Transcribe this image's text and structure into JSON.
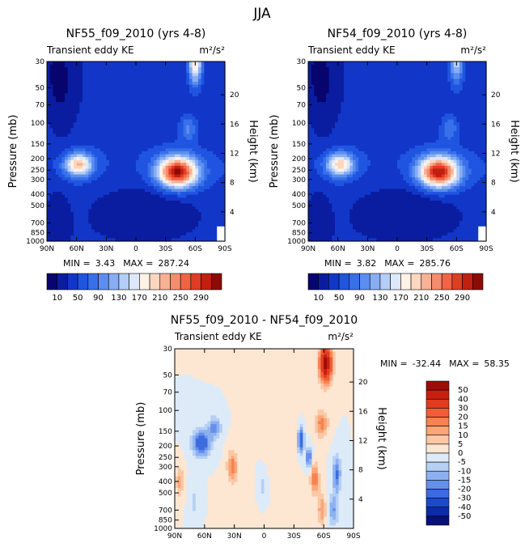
{
  "page": {
    "season_title": "JJA"
  },
  "chart_data": [
    {
      "id": "p1",
      "type": "heatmap",
      "title": "NF55_f09_2010 (yrs 4-8)",
      "left_string": "Transient eddy KE",
      "units": "m²/s²",
      "ylabel": "Pressure (mb)",
      "ylabel_right": "Height (km)",
      "x_ticks": [
        "90N",
        "60N",
        "30N",
        "0",
        "30S",
        "60S",
        "90S"
      ],
      "x_range": [
        90,
        -90
      ],
      "y_ticks": [
        30,
        50,
        70,
        100,
        150,
        200,
        250,
        300,
        400,
        500,
        700,
        850,
        1000
      ],
      "y_range": [
        1000,
        30
      ],
      "height_ticks": [
        4,
        8,
        12,
        16,
        20
      ],
      "stats_min_label": "MIN =",
      "stats_min": "3.43",
      "stats_max_label": "MAX =",
      "stats_max": "287.24",
      "colorbar_labels": [
        "10",
        "50",
        "90",
        "130",
        "170",
        "210",
        "250",
        "290"
      ],
      "colorbar_colors": [
        "#08056e",
        "#0a1da0",
        "#1237c8",
        "#1f55e0",
        "#3870ea",
        "#5b8ef0",
        "#87adf4",
        "#b5cef8",
        "#dde9fb",
        "#fff3e6",
        "#fdd6c0",
        "#f9b196",
        "#f58c6e",
        "#f06445",
        "#e13c25",
        "#c1200f",
        "#8c0b06"
      ],
      "blobs": [
        {
          "lat": -42,
          "p": 260,
          "lw": 20,
          "lp": 0.3,
          "a": 270
        },
        {
          "lat": -60,
          "p": 30,
          "lw": 7,
          "lp": 0.45,
          "a": 160
        },
        {
          "lat": -53,
          "p": 110,
          "lw": 8,
          "lp": 0.25,
          "a": 55
        },
        {
          "lat": 58,
          "p": 225,
          "lw": 14,
          "lp": 0.22,
          "a": 170
        },
        {
          "lat": -8,
          "p": 500,
          "lw": 55,
          "lp": 0.5,
          "a": -30
        },
        {
          "lat": 80,
          "p": 600,
          "lw": 12,
          "lp": 0.6,
          "a": -25
        }
      ]
    },
    {
      "id": "p2",
      "type": "heatmap",
      "title": "NF54_f09_2010 (yrs 4-8)",
      "left_string": "Transient eddy KE",
      "units": "m²/s²",
      "ylabel": "Pressure (mb)",
      "ylabel_right": "Height (km)",
      "x_ticks": [
        "90N",
        "60N",
        "30N",
        "0",
        "30S",
        "60S",
        "90S"
      ],
      "x_range": [
        90,
        -90
      ],
      "y_ticks": [
        30,
        50,
        70,
        100,
        150,
        200,
        250,
        300,
        400,
        500,
        700,
        850,
        1000
      ],
      "y_range": [
        1000,
        30
      ],
      "height_ticks": [
        4,
        8,
        12,
        16,
        20
      ],
      "stats_min_label": "MIN =",
      "stats_min": "3.82",
      "stats_max_label": "MAX =",
      "stats_max": "285.76",
      "colorbar_labels": [
        "10",
        "50",
        "90",
        "130",
        "170",
        "210",
        "250",
        "290"
      ],
      "colorbar_colors": [
        "#08056e",
        "#0a1da0",
        "#1237c8",
        "#1f55e0",
        "#3870ea",
        "#5b8ef0",
        "#87adf4",
        "#b5cef8",
        "#dde9fb",
        "#fff3e6",
        "#fdd6c0",
        "#f9b196",
        "#f58c6e",
        "#f06445",
        "#e13c25",
        "#c1200f",
        "#8c0b06"
      ],
      "blobs": [
        {
          "lat": -42,
          "p": 260,
          "lw": 20,
          "lp": 0.3,
          "a": 265
        },
        {
          "lat": -60,
          "p": 30,
          "lw": 7,
          "lp": 0.45,
          "a": 110
        },
        {
          "lat": -53,
          "p": 110,
          "lw": 8,
          "lp": 0.25,
          "a": 50
        },
        {
          "lat": 58,
          "p": 225,
          "lw": 14,
          "lp": 0.22,
          "a": 160
        },
        {
          "lat": -8,
          "p": 500,
          "lw": 55,
          "lp": 0.5,
          "a": -30
        },
        {
          "lat": 80,
          "p": 600,
          "lw": 12,
          "lp": 0.6,
          "a": -25
        }
      ]
    },
    {
      "id": "p3",
      "type": "heatmap",
      "title": "NF55_f09_2010 - NF54_f09_2010",
      "left_string": "Transient eddy KE",
      "units": "m²/s²",
      "ylabel": "Pressure (mb)",
      "ylabel_right": "Height (km)",
      "x_ticks": [
        "90N",
        "60N",
        "30N",
        "0",
        "30S",
        "60S",
        "90S"
      ],
      "x_range": [
        90,
        -90
      ],
      "y_ticks": [
        30,
        50,
        70,
        100,
        150,
        200,
        250,
        300,
        400,
        500,
        700,
        850,
        1000
      ],
      "y_range": [
        1000,
        30
      ],
      "height_ticks": [
        4,
        8,
        12,
        16,
        20
      ],
      "stats_min_label": "MIN =",
      "stats_min": "-32.44",
      "stats_max_label": "MAX =",
      "stats_max": "58.35",
      "colorbar_labels": [
        "50",
        "40",
        "30",
        "20",
        "15",
        "10",
        "5",
        "0",
        "-5",
        "-10",
        "-15",
        "-20",
        "-30",
        "-40",
        "-50"
      ],
      "colorbar_colors": [
        "#9c0b08",
        "#c81f0f",
        "#e23b1f",
        "#f15d36",
        "#f7834f",
        "#f9a679",
        "#fbc7a4",
        "#fde6d2",
        "#ddebf8",
        "#b6cff5",
        "#8db1f0",
        "#6590ea",
        "#3c6be0",
        "#1c49cc",
        "#0c2ca6",
        "#070f7a"
      ],
      "blobs": [
        {
          "lat": -62,
          "p": 40,
          "lw": 6,
          "lp": 0.35,
          "a": 55
        },
        {
          "lat": -58,
          "p": 130,
          "lw": 6,
          "lp": 0.25,
          "a": 18
        },
        {
          "lat": -37,
          "p": 180,
          "lw": 3,
          "lp": 0.25,
          "a": -28
        },
        {
          "lat": -45,
          "p": 250,
          "lw": 3,
          "lp": 0.2,
          "a": -22
        },
        {
          "lat": -51,
          "p": 380,
          "lw": 4,
          "lp": 0.3,
          "a": 20
        },
        {
          "lat": -58,
          "p": 700,
          "lw": 4,
          "lp": 0.3,
          "a": 15
        },
        {
          "lat": -73,
          "p": 350,
          "lw": 4,
          "lp": 0.35,
          "a": -22
        },
        {
          "lat": -70,
          "p": 700,
          "lw": 5,
          "lp": 0.3,
          "a": -15
        },
        {
          "lat": 63,
          "p": 190,
          "lw": 9,
          "lp": 0.25,
          "a": -28
        },
        {
          "lat": 50,
          "p": 140,
          "lw": 6,
          "lp": 0.2,
          "a": -18
        },
        {
          "lat": 32,
          "p": 300,
          "lw": 5,
          "lp": 0.3,
          "a": 18
        },
        {
          "lat": 85,
          "p": 400,
          "lw": 4,
          "lp": 0.3,
          "a": 12
        },
        {
          "lat": 70,
          "p": 600,
          "lw": 5,
          "lp": 0.35,
          "a": -6
        },
        {
          "lat": 2,
          "p": 450,
          "lw": 6,
          "lp": 0.4,
          "a": -7
        },
        {
          "lat": -15,
          "p": 200,
          "lw": 18,
          "lp": 0.8,
          "a": 3
        },
        {
          "lat": 15,
          "p": 700,
          "lw": 20,
          "lp": 0.6,
          "a": 2
        }
      ]
    }
  ]
}
